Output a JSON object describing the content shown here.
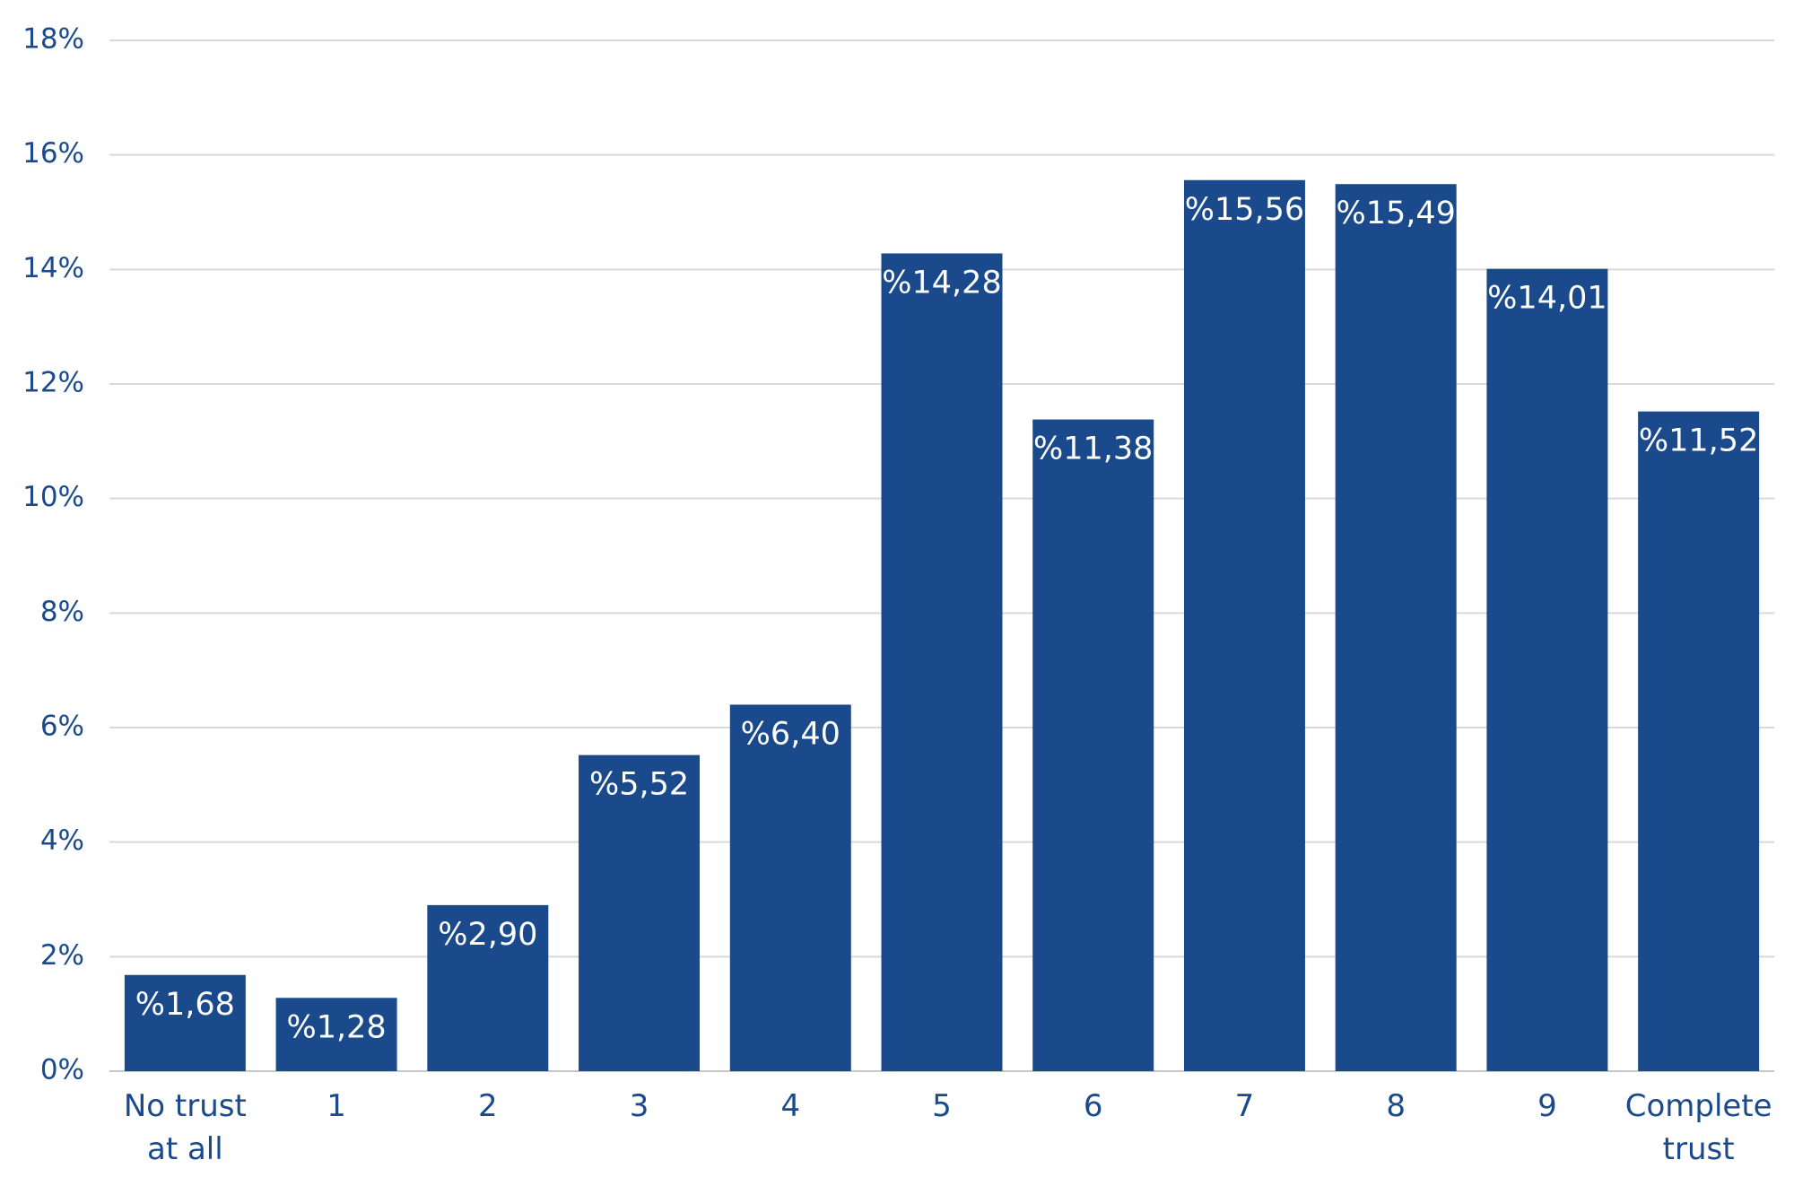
{
  "colors": {
    "bar": "#1a4a8c",
    "text": "#1a4a8c",
    "data_label": "#ffffff",
    "grid": "#d9d9d9"
  },
  "chart_data": {
    "type": "bar",
    "title": "",
    "xlabel": "",
    "ylabel": "",
    "categories": [
      "No trust\nat all",
      "1",
      "2",
      "3",
      "4",
      "5",
      "6",
      "7",
      "8",
      "9",
      "Complete\ntrust"
    ],
    "values": [
      1.68,
      1.28,
      2.9,
      5.52,
      6.4,
      14.28,
      11.38,
      15.56,
      15.49,
      14.01,
      11.52
    ],
    "data_labels": [
      "%1,68",
      "%1,28",
      "%2,90",
      "%5,52",
      "%6,40",
      "%14,28",
      "%11,38",
      "%15,56",
      "%15,49",
      "%14,01",
      "%11,52"
    ],
    "ylim": [
      0,
      18
    ],
    "yticks": [
      0,
      2,
      4,
      6,
      8,
      10,
      12,
      14,
      16,
      18
    ],
    "ytick_labels": [
      "0%",
      "2%",
      "4%",
      "6%",
      "8%",
      "10%",
      "12%",
      "14%",
      "16%",
      "18%"
    ],
    "grid": true,
    "legend": "none"
  }
}
